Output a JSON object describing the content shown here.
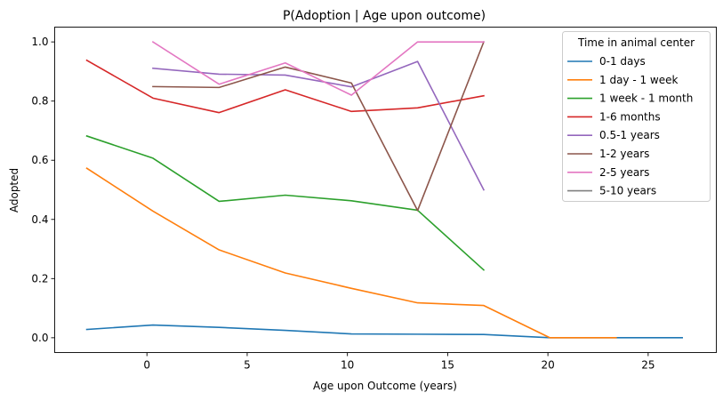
{
  "chart_data": {
    "type": "line",
    "title": "P(Adoption | Age upon outcome)",
    "xlabel": "Age upon Outcome (years)",
    "ylabel": "Adopted",
    "xlim": [
      -4.6,
      28.4
    ],
    "ylim": [
      -0.05,
      1.05
    ],
    "xticks": [
      0,
      5,
      10,
      15,
      20,
      25
    ],
    "yticks": [
      0.0,
      0.2,
      0.4,
      0.6,
      0.8,
      1.0
    ],
    "xtick_labels": [
      "0",
      "5",
      "10",
      "15",
      "20",
      "25"
    ],
    "ytick_labels": [
      "0.0",
      "0.2",
      "0.4",
      "0.6",
      "0.8",
      "1.0"
    ],
    "grid": false,
    "legend": {
      "title": "Time in animal center",
      "placement": "top-right"
    },
    "series": [
      {
        "name": "0-1 days",
        "color": "#1f77b4",
        "points": [
          [
            -3.0,
            0.028
          ],
          [
            0.3,
            0.043
          ],
          [
            3.6,
            0.035
          ],
          [
            6.9,
            0.025
          ],
          [
            10.2,
            0.013
          ],
          [
            13.5,
            0.012
          ],
          [
            16.8,
            0.011
          ],
          [
            20.1,
            0.0
          ],
          [
            23.4,
            0.0
          ],
          [
            26.7,
            0.0
          ]
        ]
      },
      {
        "name": "1 day - 1 week",
        "color": "#ff7f0e",
        "points": [
          [
            -3.0,
            0.573
          ],
          [
            0.3,
            0.428
          ],
          [
            3.6,
            0.297
          ],
          [
            6.9,
            0.219
          ],
          [
            10.2,
            0.167
          ],
          [
            13.5,
            0.118
          ],
          [
            16.8,
            0.109
          ],
          [
            20.1,
            0.0
          ],
          [
            23.4,
            0.0
          ]
        ]
      },
      {
        "name": "1 week - 1 month",
        "color": "#2ca02c",
        "points": [
          [
            -3.0,
            0.682
          ],
          [
            0.3,
            0.607
          ],
          [
            3.6,
            0.461
          ],
          [
            6.9,
            0.482
          ],
          [
            10.2,
            0.463
          ],
          [
            13.5,
            0.431
          ],
          [
            16.8,
            0.229
          ]
        ]
      },
      {
        "name": "1-6 months",
        "color": "#d62728",
        "points": [
          [
            -3.0,
            0.938
          ],
          [
            0.3,
            0.81
          ],
          [
            3.6,
            0.761
          ],
          [
            6.9,
            0.838
          ],
          [
            10.2,
            0.765
          ],
          [
            13.5,
            0.777
          ],
          [
            16.8,
            0.818
          ]
        ]
      },
      {
        "name": "0.5-1 years",
        "color": "#9467bd",
        "points": [
          [
            0.3,
            0.911
          ],
          [
            3.6,
            0.891
          ],
          [
            6.9,
            0.888
          ],
          [
            10.2,
            0.848
          ],
          [
            13.5,
            0.934
          ],
          [
            16.8,
            0.5
          ]
        ]
      },
      {
        "name": "1-2 years",
        "color": "#8c564b",
        "points": [
          [
            0.3,
            0.849
          ],
          [
            3.6,
            0.846
          ],
          [
            6.9,
            0.915
          ],
          [
            10.2,
            0.861
          ],
          [
            13.5,
            0.43
          ],
          [
            16.8,
            1.0
          ]
        ]
      },
      {
        "name": "2-5 years",
        "color": "#e377c2",
        "points": [
          [
            0.3,
            1.0
          ],
          [
            3.6,
            0.857
          ],
          [
            6.9,
            0.929
          ],
          [
            10.2,
            0.82
          ],
          [
            13.5,
            1.0
          ],
          [
            16.8,
            1.0
          ]
        ]
      },
      {
        "name": "5-10 years",
        "color": "#7f7f7f",
        "points": []
      }
    ]
  }
}
